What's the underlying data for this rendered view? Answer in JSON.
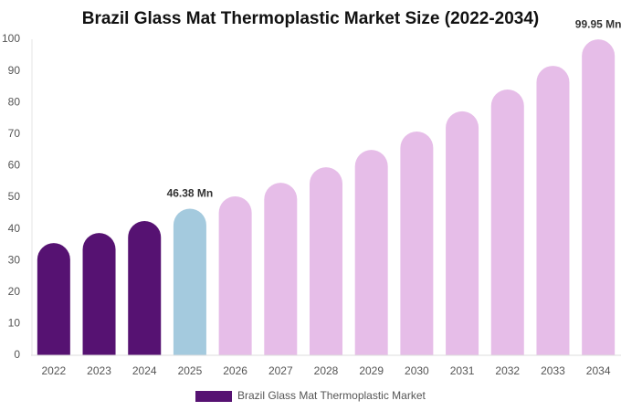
{
  "chart_data": {
    "type": "bar",
    "title": "Brazil Glass Mat Thermoplastic Market Size (2022-2034)",
    "categories": [
      "2022",
      "2023",
      "2024",
      "2025",
      "2026",
      "2027",
      "2028",
      "2029",
      "2030",
      "2031",
      "2032",
      "2033",
      "2034"
    ],
    "series": [
      {
        "name": "Brazil Glass Mat Thermoplastic Market",
        "color": "#561272",
        "values": [
          35.5,
          38.7,
          42.5,
          46.38,
          50.3,
          54.6,
          59.5,
          65.0,
          70.8,
          77.2,
          84.1,
          91.6,
          99.95
        ],
        "value_labels": [
          null,
          null,
          null,
          "46.38 Mn",
          null,
          null,
          null,
          null,
          null,
          null,
          null,
          null,
          "99.95 Mn"
        ],
        "colors": [
          "#561272",
          "#561272",
          "#561272",
          "#a4cade",
          "#e6bde8",
          "#e6bde8",
          "#e6bde8",
          "#e6bde8",
          "#e6bde8",
          "#e6bde8",
          "#e6bde8",
          "#e6bde8",
          "#e6bde8"
        ]
      }
    ],
    "ylim": [
      0,
      100
    ],
    "yticks": [
      0,
      10,
      20,
      30,
      40,
      50,
      60,
      70,
      80,
      90,
      100
    ],
    "grid": false
  }
}
